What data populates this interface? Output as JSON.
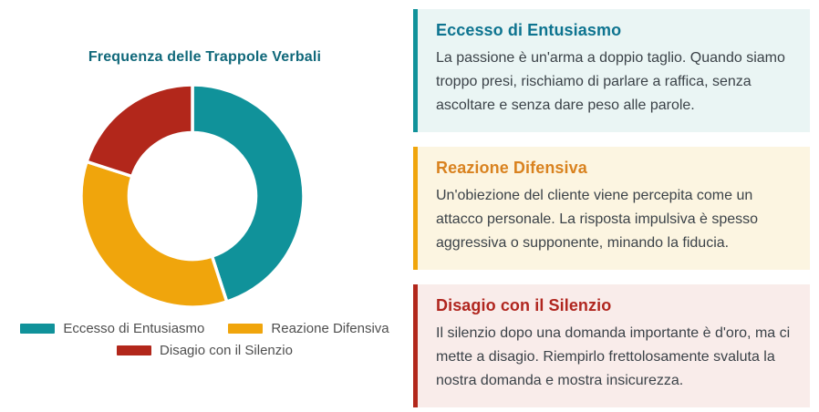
{
  "chart_data": {
    "type": "pie",
    "donut": true,
    "title": "Frequenza delle Trappole Verbali",
    "labels": [
      "Eccesso di Entusiasmo",
      "Reazione Difensiva",
      "Disagio con il Silenzio"
    ],
    "values": [
      45,
      35,
      20
    ],
    "unit": "percent-share",
    "colors": [
      "#10929a",
      "#f0a50c",
      "#b2271b"
    ],
    "start_angle_deg": -90,
    "direction": "clockwise",
    "inner_radius_ratio": 0.57,
    "slice_gap_color": "#ffffff",
    "legend_position": "bottom",
    "title_color": "#10687a"
  },
  "cards": [
    {
      "title": "Eccesso di Entusiasmo",
      "body": "La passione è un'arma a doppio taglio. Quando siamo troppo presi, rischiamo di parlare a raffica, senza ascoltare e senza dare peso alle parole.",
      "title_color": "#0e7490",
      "bg": "#eaf5f4",
      "border_color": "#10929a"
    },
    {
      "title": "Reazione Difensiva",
      "body": "Un'obiezione del cliente viene percepita come un attacco personale. La risposta impulsiva è spesso aggressiva o supponente, minando la fiducia.",
      "title_color": "#d9821f",
      "bg": "#fcf5e1",
      "border_color": "#f0a50c"
    },
    {
      "title": "Disagio con il Silenzio",
      "body": "Il silenzio dopo una domanda importante è d'oro, ma ci mette a disagio. Riempirlo frettolosamente svaluta la nostra domanda e mostra insicurezza.",
      "title_color": "#b0261f",
      "bg": "#f9ecea",
      "border_color": "#b2271b"
    }
  ]
}
